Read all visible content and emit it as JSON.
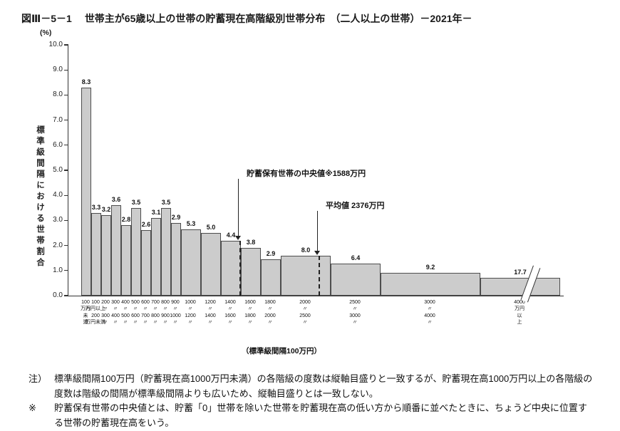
{
  "header": {
    "figure_no": "図Ⅲ－5－1",
    "title": "世帯主が65歳以上の世帯の貯蓄現在高階級別世帯分布　（二人以上の世帯）－2021年－"
  },
  "chart_data": {
    "type": "bar",
    "title": "世帯主が65歳以上の世帯の貯蓄現在高階級別世帯分布（二人以上の世帯）2021年",
    "unit_label": "(%)",
    "ylabel": "標準級間隔における世帯割合",
    "ylim": [
      0,
      10
    ],
    "ytick_step": 1,
    "grid": false,
    "xaxis_caption": "（標準級間隔100万円）",
    "bars": [
      {
        "label": "8.3",
        "value": 8.3,
        "units": 1,
        "display": 8.3,
        "tick": [
          "100",
          "万円",
          "未",
          "満"
        ]
      },
      {
        "label": "3.3",
        "value": 3.3,
        "units": 1,
        "display": 3.3,
        "tick": [
          "100",
          "万円以上",
          "200",
          "万円未満"
        ]
      },
      {
        "label": "3.2",
        "value": 3.2,
        "units": 1,
        "display": 3.2,
        "tick": [
          "200",
          "〃",
          "300",
          "〃"
        ]
      },
      {
        "label": "3.6",
        "value": 3.6,
        "units": 1,
        "display": 3.6,
        "tick": [
          "300",
          "〃",
          "400",
          "〃"
        ]
      },
      {
        "label": "2.8",
        "value": 2.8,
        "units": 1,
        "display": 2.8,
        "tick": [
          "400",
          "〃",
          "500",
          "〃"
        ]
      },
      {
        "label": "3.5",
        "value": 3.5,
        "units": 1,
        "display": 3.5,
        "tick": [
          "500",
          "〃",
          "600",
          "〃"
        ]
      },
      {
        "label": "2.6",
        "value": 2.6,
        "units": 1,
        "display": 2.6,
        "tick": [
          "600",
          "〃",
          "700",
          "〃"
        ]
      },
      {
        "label": "3.1",
        "value": 3.1,
        "units": 1,
        "display": 3.1,
        "tick": [
          "700",
          "〃",
          "800",
          "〃"
        ]
      },
      {
        "label": "3.5",
        "value": 3.5,
        "units": 1,
        "display": 3.5,
        "tick": [
          "800",
          "〃",
          "900",
          "〃"
        ]
      },
      {
        "label": "2.9",
        "value": 2.9,
        "units": 1,
        "display": 2.9,
        "tick": [
          "900",
          "〃",
          "1000",
          "〃"
        ]
      },
      {
        "label": "5.3",
        "value": 5.3,
        "units": 2,
        "display": 2.65,
        "tick": [
          "1000",
          "〃",
          "1200",
          "〃"
        ]
      },
      {
        "label": "5.0",
        "value": 5.0,
        "units": 2,
        "display": 2.5,
        "tick": [
          "1200",
          "〃",
          "1400",
          "〃"
        ]
      },
      {
        "label": "4.4",
        "value": 4.4,
        "units": 2,
        "display": 2.2,
        "tick": [
          "1400",
          "〃",
          "1600",
          "〃"
        ]
      },
      {
        "label": "3.8",
        "value": 3.8,
        "units": 2,
        "display": 1.9,
        "tick": [
          "1600",
          "〃",
          "1800",
          "〃"
        ]
      },
      {
        "label": "2.9",
        "value": 2.9,
        "units": 2,
        "display": 1.45,
        "tick": [
          "1800",
          "〃",
          "2000",
          "〃"
        ]
      },
      {
        "label": "8.0",
        "value": 8.0,
        "units": 5,
        "display": 1.6,
        "tick": [
          "2000",
          "〃",
          "2500",
          "〃"
        ]
      },
      {
        "label": "6.4",
        "value": 6.4,
        "units": 5,
        "display": 1.28,
        "tick": [
          "2500",
          "〃",
          "3000",
          "〃"
        ]
      },
      {
        "label": "9.2",
        "value": 9.2,
        "units": 10,
        "display": 0.92,
        "tick": [
          "3000",
          "〃",
          "4000",
          "〃"
        ]
      },
      {
        "label": "17.7",
        "value": 17.7,
        "units": 8,
        "display": 0.7,
        "truncated": true,
        "tick": [
          "4000",
          "万円",
          "以",
          "上"
        ]
      }
    ],
    "median": {
      "text": "貯蓄保有世帯の中央値※1588万円",
      "value_man_yen": 1588,
      "x_units": 15.88,
      "line_display_height": 2.2
    },
    "mean": {
      "text": "平均値 2376万円",
      "value_man_yen": 2376,
      "x_units": 23.76,
      "line_display_height": 1.6
    }
  },
  "notes": [
    {
      "marker": "注）",
      "text": "標準級間隔100万円（貯蓄現在高1000万円未満）の各階級の度数は縦軸目盛りと一致するが、貯蓄現在高1000万円以上の各階級の度数は階級の間隔が標準級間隔よりも広いため、縦軸目盛りとは一致しない。"
    },
    {
      "marker": "※",
      "text": "貯蓄保有世帯の中央値とは、貯蓄「0」世帯を除いた世帯を貯蓄現在高の低い方から順番に並べたときに、ちょうど中央に位置する世帯の貯蓄現在高をいう。"
    }
  ]
}
